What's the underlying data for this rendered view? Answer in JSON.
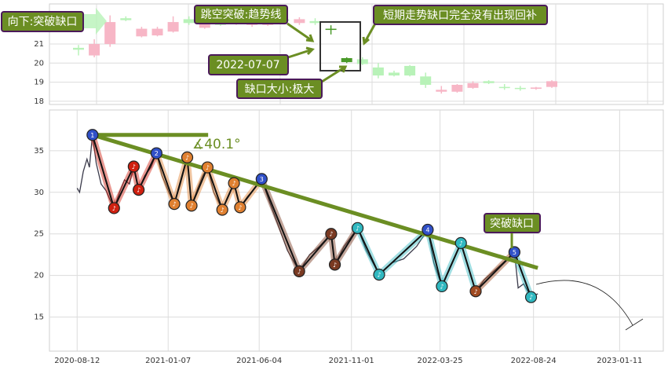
{
  "chart_data": [
    {
      "type": "candlestick",
      "open": [
        20.8,
        20.4,
        21.0,
        22.35,
        21.4,
        21.45,
        21.65,
        22.3,
        21.85,
        22.45,
        22.1,
        22.0,
        22.0,
        22.3,
        22.1,
        22.2,
        21.8,
        20.26,
        20.2,
        19.77,
        19.5,
        19.85,
        19.3,
        18.6,
        18.5,
        18.7,
        19.05,
        18.75,
        18.7,
        18.65,
        18.75
      ],
      "high": [
        20.95,
        21.25,
        22.5,
        22.45,
        21.9,
        21.9,
        22.45,
        22.45,
        22.45,
        22.6,
        22.4,
        22.6,
        22.5,
        22.5,
        22.4,
        22.35,
        21.98,
        20.3,
        20.3,
        20.0,
        19.6,
        19.9,
        19.5,
        18.8,
        18.9,
        19.05,
        19.1,
        18.9,
        18.8,
        18.75,
        19.1
      ],
      "low": [
        20.4,
        20.3,
        20.85,
        22.2,
        21.35,
        21.4,
        21.6,
        22.0,
        21.8,
        21.95,
        22.0,
        21.9,
        21.95,
        22.1,
        22.0,
        22.0,
        21.5,
        20.0,
        19.9,
        19.2,
        19.3,
        19.3,
        18.7,
        18.4,
        18.45,
        18.65,
        18.9,
        18.6,
        18.55,
        18.6,
        18.7
      ],
      "close": [
        20.7,
        21.0,
        22.15,
        22.25,
        21.8,
        21.8,
        22.15,
        22.1,
        22.15,
        22.0,
        22.3,
        22.3,
        22.35,
        22.2,
        22.3,
        22.1,
        21.75,
        20.05,
        19.95,
        19.35,
        19.35,
        19.35,
        18.86,
        18.5,
        18.86,
        18.95,
        18.95,
        18.7,
        18.65,
        18.72,
        19.05
      ],
      "colors": [
        "#b8f2b8",
        "#f7b6c6",
        "#f7b6c6",
        "#b8f2b8",
        "#f7b6c6",
        "#f7b6c6",
        "#f7b6c6",
        "#b8f2b8",
        "#f7b6c6",
        "#b8f2b8",
        "#f7b6c6",
        "#f7b6c6",
        "#f7b6c6",
        "#b8f2b8",
        "#f7b6c6",
        "#b8f2b8",
        "#4a9a2a",
        "#4a9a2a",
        "#b8f2b8",
        "#b8f2b8",
        "#b8f2b8",
        "#b8f2b8",
        "#b8f2b8",
        "#f7b6c6",
        "#f7b6c6",
        "#f7b6c6",
        "#b8f2b8",
        "#b8f2b8",
        "#b8f2b8",
        "#f7b6c6",
        "#f7b6c6"
      ],
      "ylim": [
        17.83,
        23.1
      ],
      "yticks": [
        18,
        19,
        20,
        21
      ],
      "grid": true,
      "annotations": [
        "向下:突破缺口",
        "跳空突破:趋势线",
        "2022-07-07",
        "缺口大小:极大",
        "短期走势缺口完全没有出现回补"
      ]
    },
    {
      "type": "line",
      "x": [
        "2020-08-12",
        "2020-08-16",
        "2020-08-22",
        "2020-08-28",
        "2020-09-01",
        "2020-09-06",
        "2020-09-12",
        "2020-09-20",
        "2020-09-28",
        "2020-10-05",
        "2020-10-11",
        "2020-10-20",
        "2020-10-28",
        "2020-11-05",
        "2020-11-12",
        "2020-11-20",
        "2020-11-30",
        "2020-12-10",
        "2020-12-19",
        "2020-12-28",
        "2021-01-08",
        "2021-01-17",
        "2021-01-27",
        "2021-02-07",
        "2021-02-14",
        "2021-02-24",
        "2021-03-04",
        "2021-03-12",
        "2021-03-22",
        "2021-04-05",
        "2021-04-15",
        "2021-04-24",
        "2021-05-04",
        "2021-05-16",
        "2021-05-28",
        "2021-06-08",
        "2021-06-20",
        "2021-07-05",
        "2021-07-20",
        "2021-08-08",
        "2021-08-25",
        "2021-09-10",
        "2021-09-29",
        "2021-10-05",
        "2021-10-20",
        "2021-11-11",
        "2021-11-25",
        "2021-12-16",
        "2022-01-05",
        "2022-01-25",
        "2022-02-15",
        "2022-03-05",
        "2022-03-15",
        "2022-03-28",
        "2022-04-10",
        "2022-04-28",
        "2022-05-10",
        "2022-05-22",
        "2022-06-05",
        "2022-06-20",
        "2022-07-05",
        "2022-07-24",
        "2022-07-30",
        "2022-08-08",
        "2022-08-20",
        "2022-08-31"
      ],
      "series": [
        {
          "color": "#3a3a4a",
          "values": [
            30.5,
            30.0,
            32.5,
            34.0,
            33.0,
            36.9,
            33.5,
            31.0,
            30.2,
            29.0,
            28.1,
            30.0,
            31.5,
            31.0,
            33.1,
            30.3,
            32.0,
            33.0,
            34.7,
            32.0,
            30.0,
            28.6,
            31.0,
            34.2,
            28.4,
            30.5,
            32.0,
            33.0,
            30.0,
            27.9,
            29.5,
            31.1,
            28.2,
            29.5,
            30.5,
            31.6,
            29.0,
            26.0,
            23.0,
            20.5,
            22.5,
            23.5,
            25.0,
            21.3,
            23.5,
            25.7,
            23.0,
            20.1,
            21.5,
            22.0,
            23.5,
            25.5,
            21.5,
            18.7,
            21.0,
            23.9,
            21.0,
            18.1,
            19.5,
            20.5,
            21.5,
            22.8,
            18.5,
            19.0,
            17.4,
            17.8
          ]
        }
      ],
      "zigzag": {
        "x": [
          "2020-09-06",
          "2020-10-11",
          "2020-11-12",
          "2020-11-20",
          "2020-12-19",
          "2021-01-17",
          "2021-02-07",
          "2021-02-14",
          "2021-03-12",
          "2021-04-05",
          "2021-04-24",
          "2021-05-04",
          "2021-06-08",
          "2021-08-08",
          "2021-09-29",
          "2021-10-05",
          "2021-11-11",
          "2021-12-16",
          "2022-03-05",
          "2022-03-28",
          "2022-04-28",
          "2022-05-22",
          "2022-07-24",
          "2022-08-20"
        ],
        "values": [
          36.9,
          28.1,
          33.1,
          30.3,
          34.7,
          28.6,
          34.2,
          28.4,
          33.0,
          27.9,
          31.1,
          28.2,
          31.6,
          20.5,
          25.0,
          21.3,
          25.7,
          20.1,
          25.5,
          18.7,
          23.9,
          18.1,
          22.8,
          17.4
        ],
        "labels": [
          "1",
          "♪",
          "♪",
          "♪",
          "2",
          "♪",
          "♪",
          "♪",
          "♪",
          "♪",
          "♪",
          "♪",
          "3",
          "♪",
          "♪",
          "♪",
          "♪",
          "♪",
          "4",
          "♪",
          "♪",
          "♪",
          "5",
          "♪"
        ],
        "colors": [
          "#3050c8",
          "#d02010",
          "#d02010",
          "#d02010",
          "#3050c8",
          "#e08030",
          "#e08030",
          "#e08030",
          "#e08030",
          "#e08030",
          "#e08030",
          "#e08030",
          "#3050c8",
          "#7a3a22",
          "#7a3a22",
          "#7a3a22",
          "#30b8c0",
          "#30b8c0",
          "#3050c8",
          "#30b8c0",
          "#30b8c0",
          "#a04a20",
          "#3050c8",
          "#30b8c0"
        ]
      },
      "trendline": {
        "x": [
          "2020-09-06",
          "2022-08-31"
        ],
        "values": [
          36.9,
          20.9
        ],
        "color": "#6b8e23"
      },
      "baseline": {
        "x": [
          "2020-09-06",
          "2021-03-13"
        ],
        "values": [
          36.9,
          36.9
        ],
        "color": "#6b8e23"
      },
      "angle_label": "∡40.1°",
      "annotation": "突破缺口",
      "xlim": [
        "2020-06-28",
        "2023-03-23"
      ],
      "xticks": [
        "2020-08-12",
        "2021-01-07",
        "2021-06-04",
        "2021-11-01",
        "2022-03-25",
        "2022-08-24",
        "2023-01-11"
      ],
      "ylim": [
        10.9,
        39.9
      ],
      "yticks": [
        15,
        20,
        25,
        30,
        35
      ],
      "grid": true
    }
  ]
}
